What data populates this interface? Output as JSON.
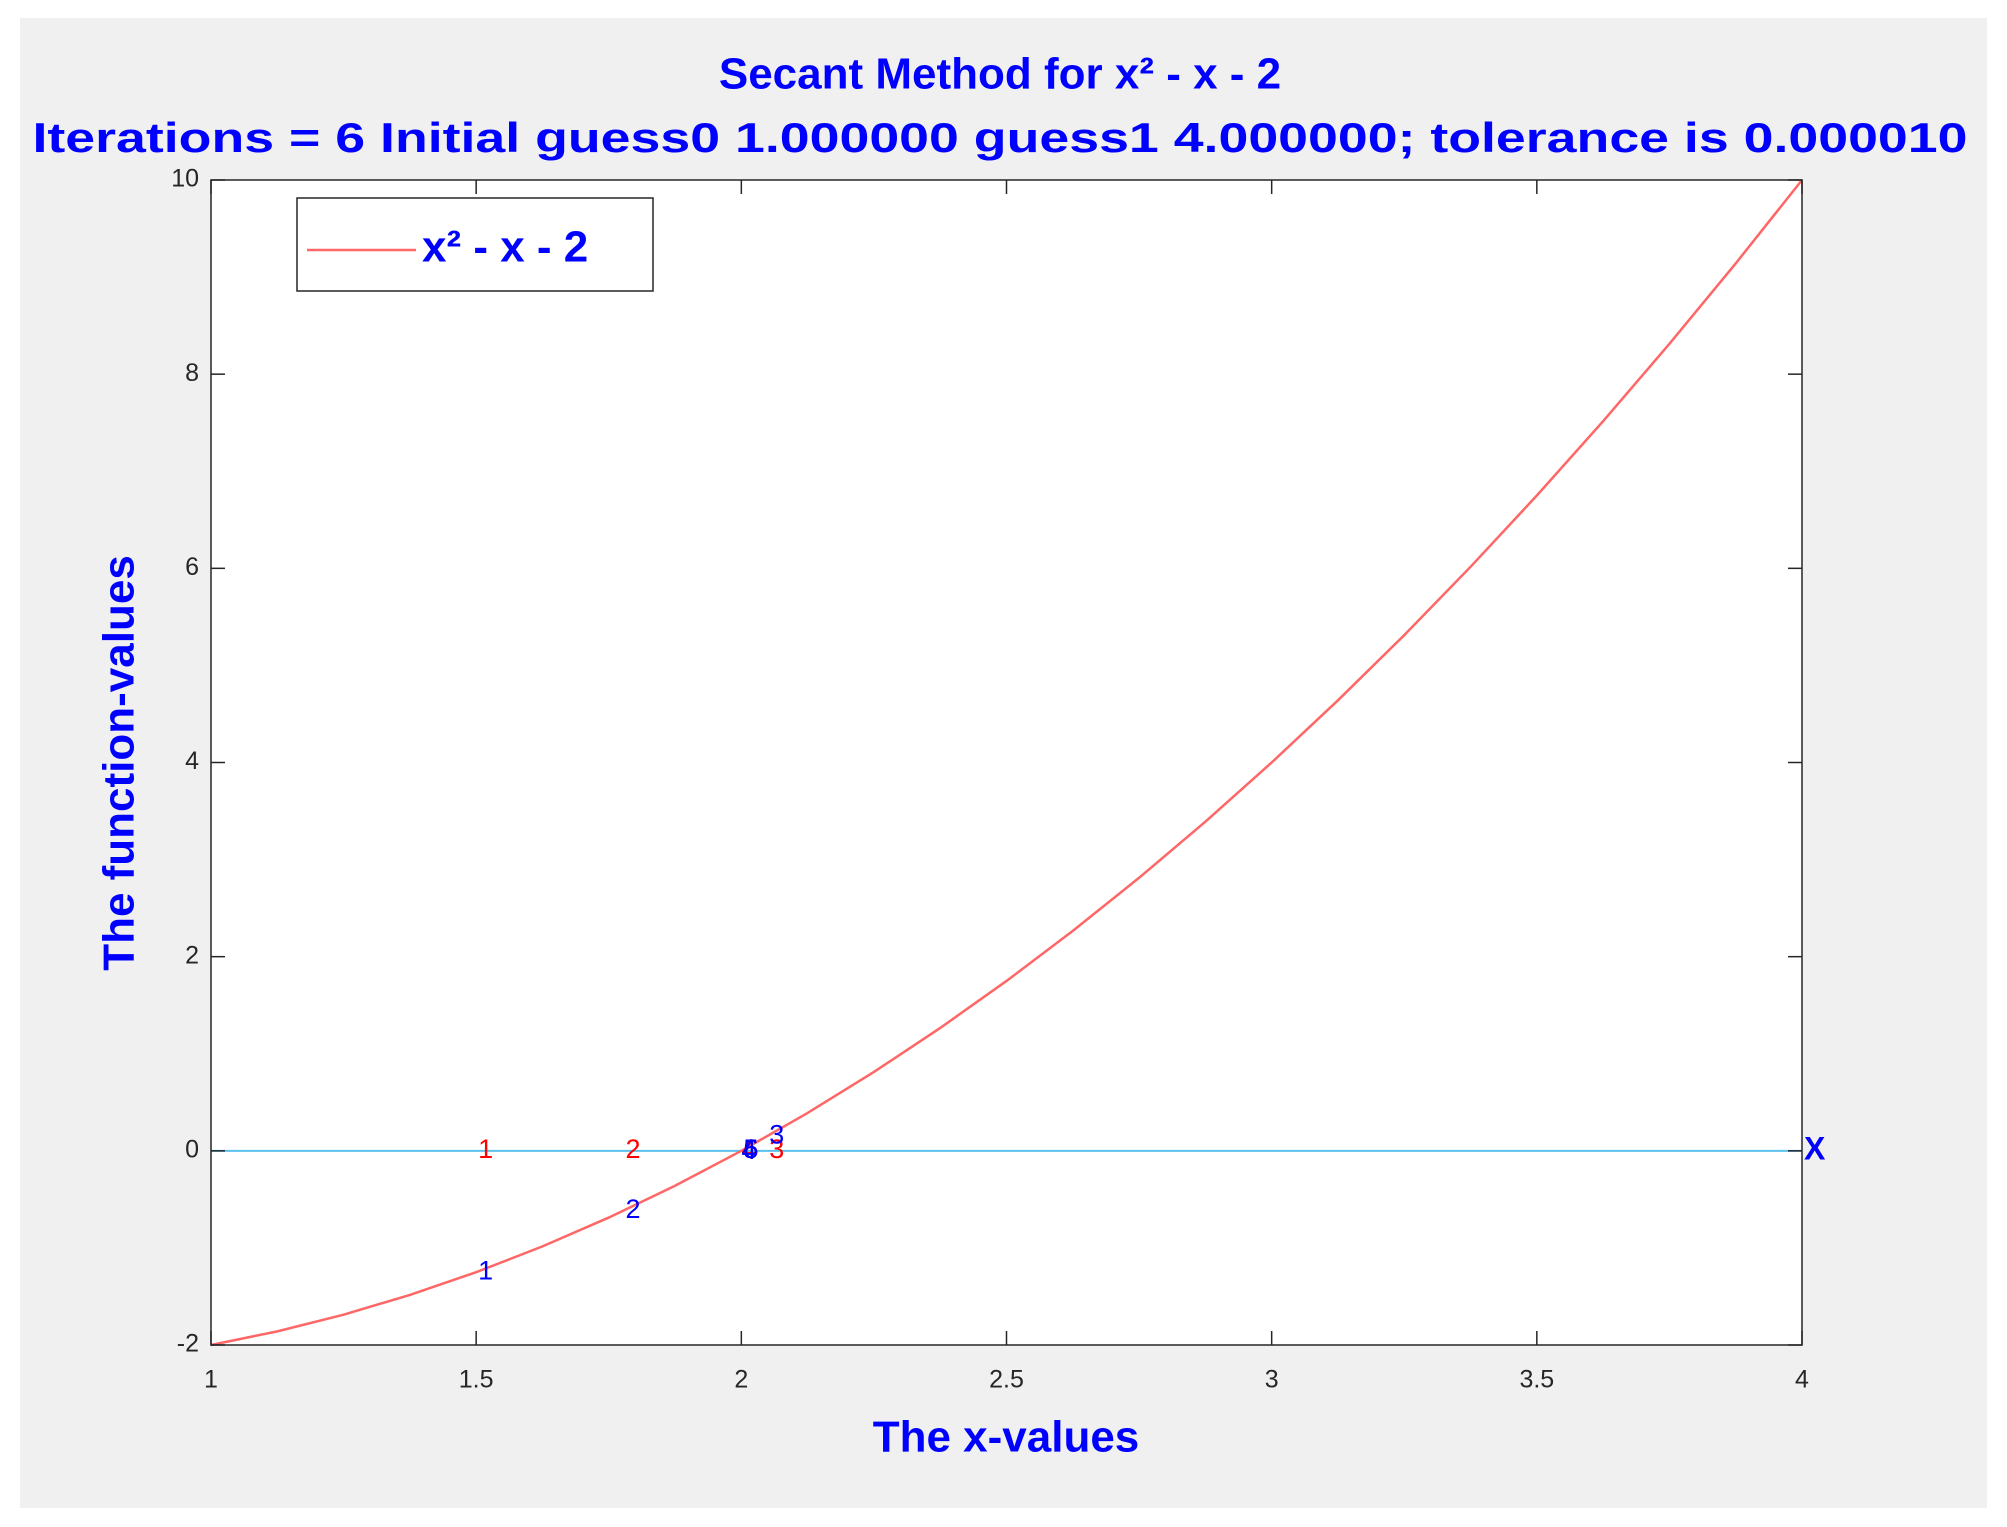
{
  "chart_data": {
    "type": "line",
    "title": "Secant Method for x² - x - 2",
    "subtitle": "Iterations = 6 Initial guess0 1.000000  guess1 4.000000; tolerance is 0.000010",
    "x_label": "The x-values",
    "y_label": "The function-values",
    "xlim": [
      1,
      4
    ],
    "xticks": [
      1,
      1.5,
      2,
      2.5,
      3,
      3.5,
      4
    ],
    "ylim": [
      -2,
      10
    ],
    "yticks": [
      -2,
      0,
      2,
      4,
      6,
      8,
      10
    ],
    "legend_position": "upper-left",
    "x": [
      1,
      1.125,
      1.25,
      1.375,
      1.5,
      1.625,
      1.75,
      1.875,
      2,
      2.125,
      2.25,
      2.375,
      2.5,
      2.625,
      2.75,
      2.875,
      3,
      3.125,
      3.25,
      3.375,
      3.5,
      3.625,
      3.75,
      3.875,
      4
    ],
    "series": [
      {
        "name": "x² - x - 2",
        "color": "#ff6666",
        "values": [
          -2,
          -1.859375,
          -1.6875,
          -1.484375,
          -1.25,
          -0.984375,
          -0.6875,
          -0.359375,
          0,
          0.390625,
          0.8125,
          1.265625,
          1.75,
          2.265625,
          2.8125,
          3.390625,
          4,
          4.640625,
          5.3125,
          6.015625,
          6.75,
          7.515625,
          8.3125,
          9.140625,
          10
        ]
      }
    ],
    "reference_line": {
      "y": 0,
      "color": "#5bc0eb"
    },
    "annotations": [
      {
        "text": "1",
        "x": 1.5,
        "y": 0,
        "color": "#ff0000"
      },
      {
        "text": "2",
        "x": 1.7778,
        "y": 0,
        "color": "#ff0000"
      },
      {
        "text": "3",
        "x": 2.0488,
        "y": 0,
        "color": "#ff0000"
      },
      {
        "text": "4",
        "x": 1.9962,
        "y": 0,
        "color": "#ff0000"
      },
      {
        "text": "5",
        "x": 2.0,
        "y": 0,
        "color": "#ff0000"
      },
      {
        "text": "6",
        "x": 2.0,
        "y": 0,
        "color": "#ff0000"
      },
      {
        "text": "1",
        "x": 1.5,
        "y": -1.25,
        "color": "#0000ff"
      },
      {
        "text": "2",
        "x": 1.7778,
        "y": -0.6173,
        "color": "#0000ff"
      },
      {
        "text": "3",
        "x": 2.0488,
        "y": 0.1488,
        "color": "#0000ff"
      },
      {
        "text": "4",
        "x": 1.9962,
        "y": -0.0114,
        "color": "#0000ff"
      },
      {
        "text": "5",
        "x": 2.0,
        "y": -0.0002,
        "color": "#0000ff"
      },
      {
        "text": "6",
        "x": 2.0,
        "y": 0.0,
        "color": "#0000ff"
      },
      {
        "text": "X",
        "x": 4,
        "y": 0,
        "color": "#0000ff"
      }
    ]
  }
}
